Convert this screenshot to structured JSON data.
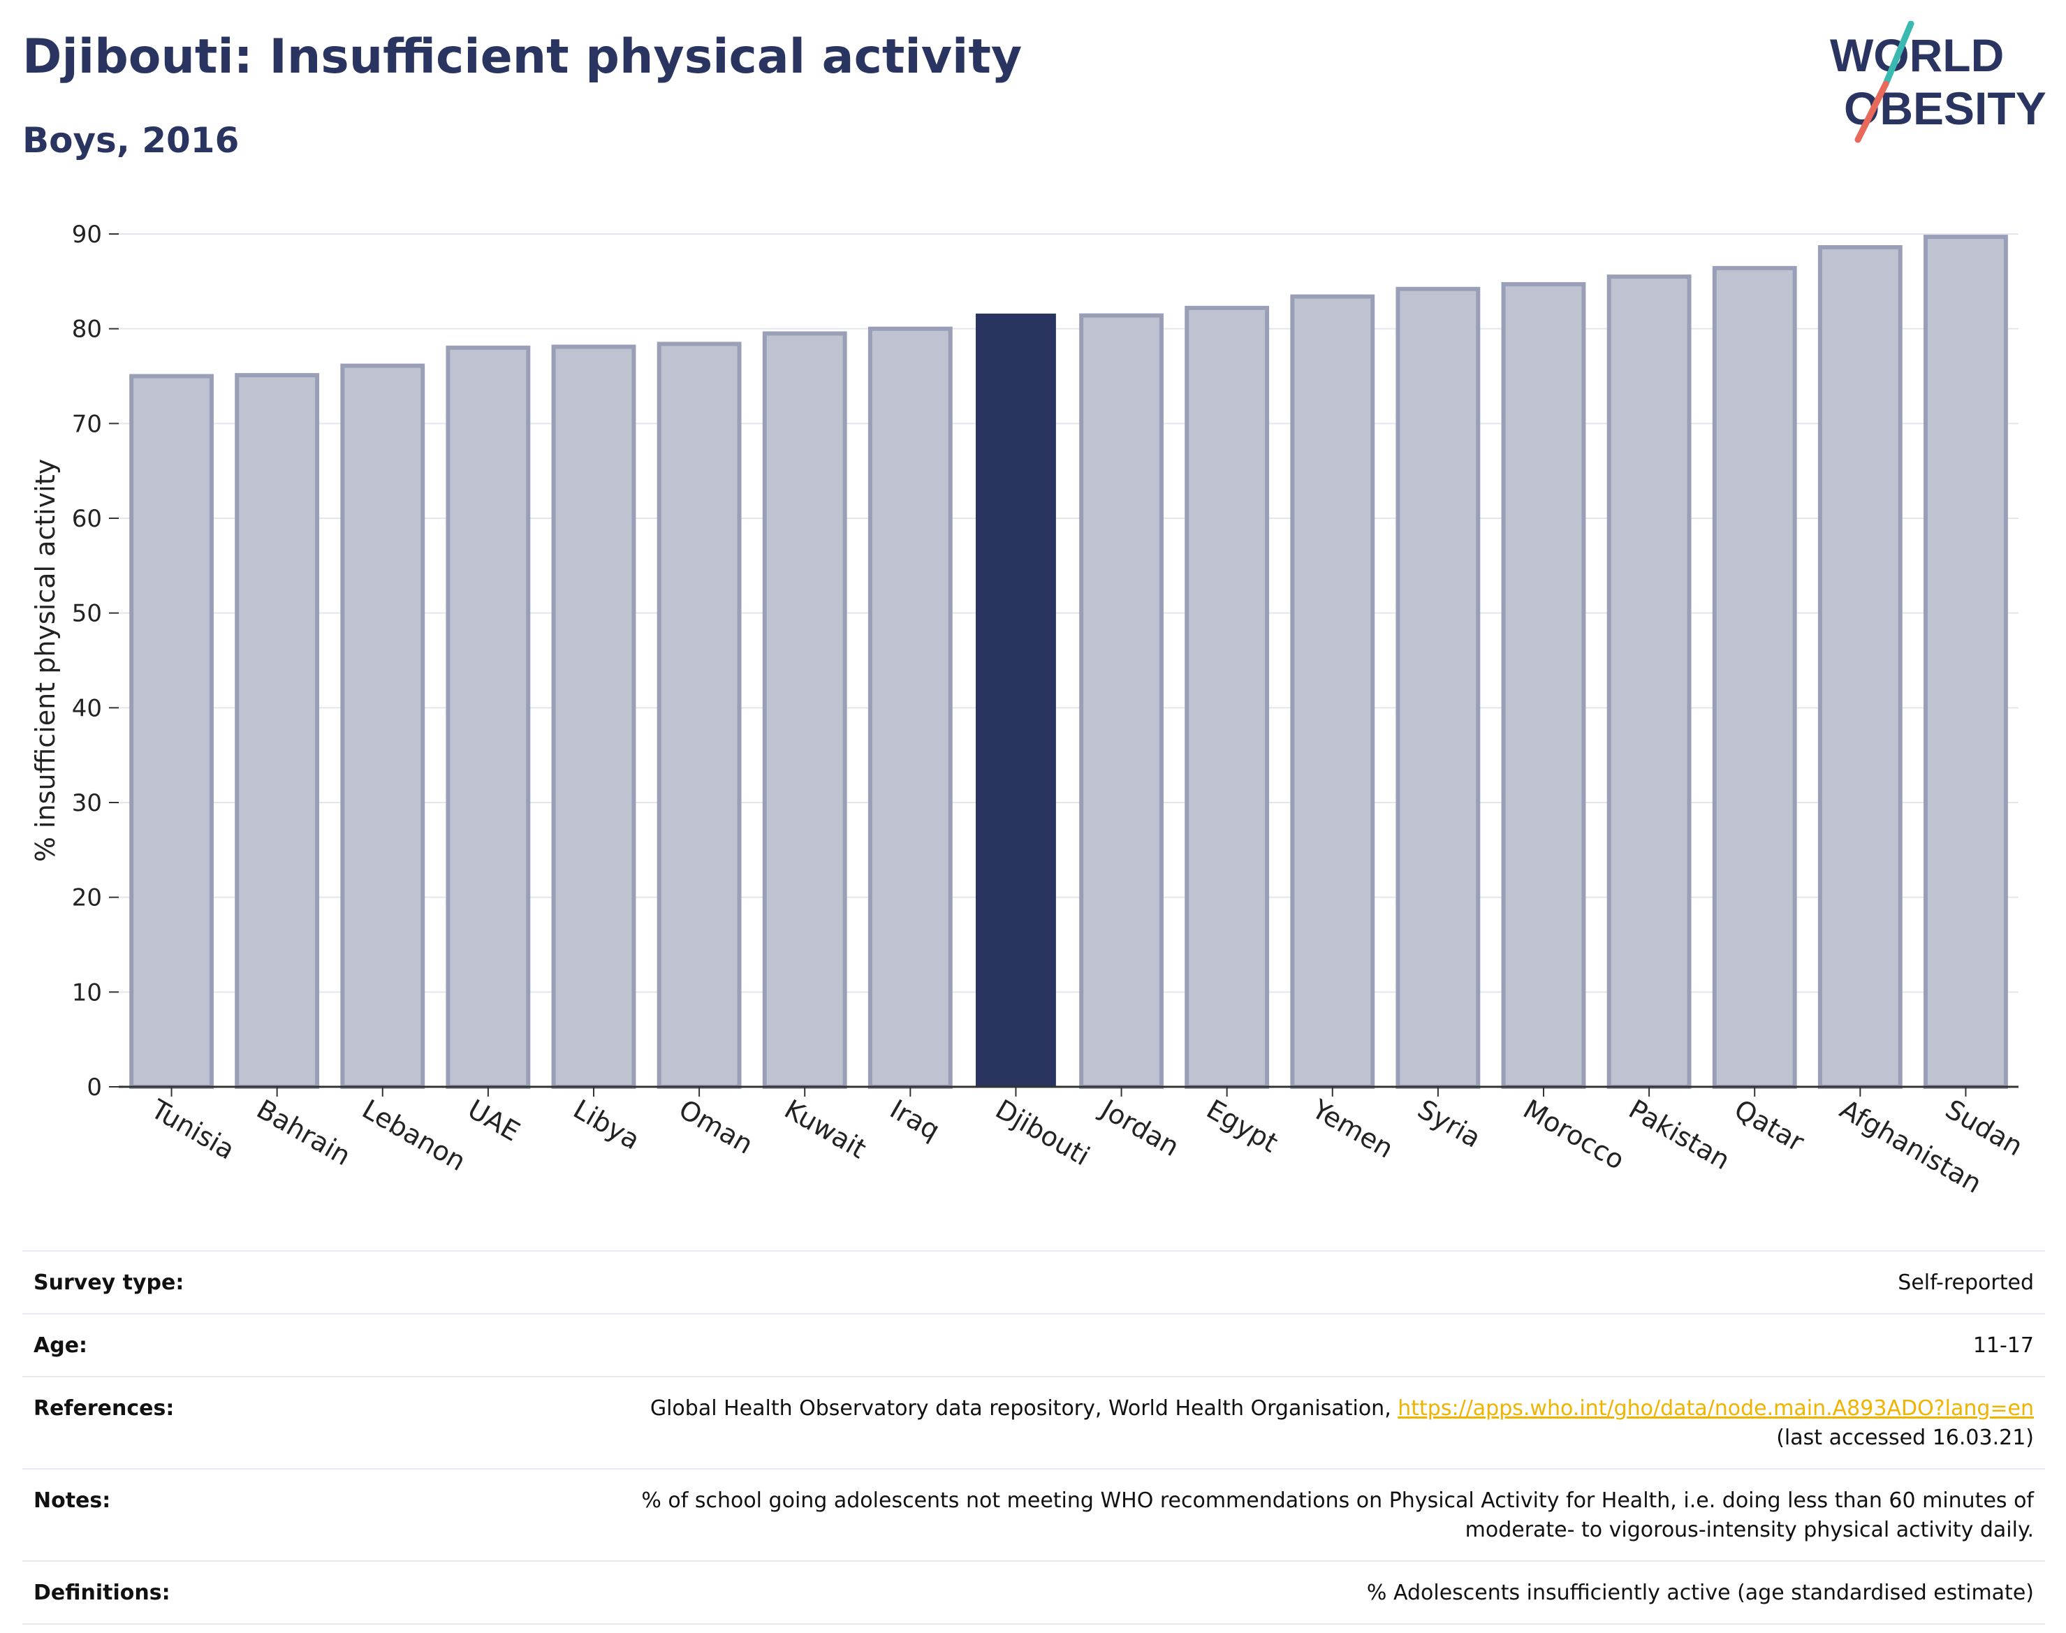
{
  "header": {
    "title": "Djibouti: Insufficient physical activity",
    "subtitle": "Boys, 2016"
  },
  "logo": {
    "line1": "WORLD",
    "line2": "OBESITY"
  },
  "chart_data": {
    "type": "bar",
    "ylabel": "% insufficient physical activity",
    "ylim": [
      0,
      90
    ],
    "yticks": [
      0,
      10,
      20,
      30,
      40,
      50,
      60,
      70,
      80,
      90
    ],
    "grid": true,
    "highlight": "Djibouti",
    "colors": {
      "bar": "#bfc2d0",
      "bar_edge": "#9a9fb8",
      "highlight": "#2a3461",
      "grid": "#e3e6ee"
    },
    "categories": [
      "Tunisia",
      "Bahrain",
      "Lebanon",
      "UAE",
      "Libya",
      "Oman",
      "Kuwait",
      "Iraq",
      "Djibouti",
      "Jordan",
      "Egypt",
      "Yemen",
      "Syria",
      "Morocco",
      "Pakistan",
      "Qatar",
      "Afghanistan",
      "Sudan"
    ],
    "values": [
      75.0,
      75.1,
      76.1,
      78.0,
      78.1,
      78.4,
      79.5,
      80.0,
      81.6,
      81.4,
      82.2,
      83.4,
      84.2,
      84.7,
      85.5,
      86.4,
      88.6,
      89.7
    ]
  },
  "meta": {
    "survey_type": {
      "label": "Survey type:",
      "value": "Self-reported"
    },
    "age": {
      "label": "Age:",
      "value": "11-17"
    },
    "references": {
      "label": "References:",
      "text": "Global Health Observatory data repository, World Health Organisation, ",
      "link": "https://apps.who.int/gho/data/node.main.A893ADO?lang=en",
      "accessed": "(last accessed 16.03.21)"
    },
    "notes": {
      "label": "Notes:",
      "line1": "% of school going adolescents not meeting WHO recommendations on Physical Activity for Health, i.e. doing less than 60 minutes of",
      "line2": "moderate- to vigorous-intensity physical activity daily."
    },
    "definitions": {
      "label": "Definitions:",
      "value": "% Adolescents insufficiently active (age standardised estimate)"
    }
  }
}
